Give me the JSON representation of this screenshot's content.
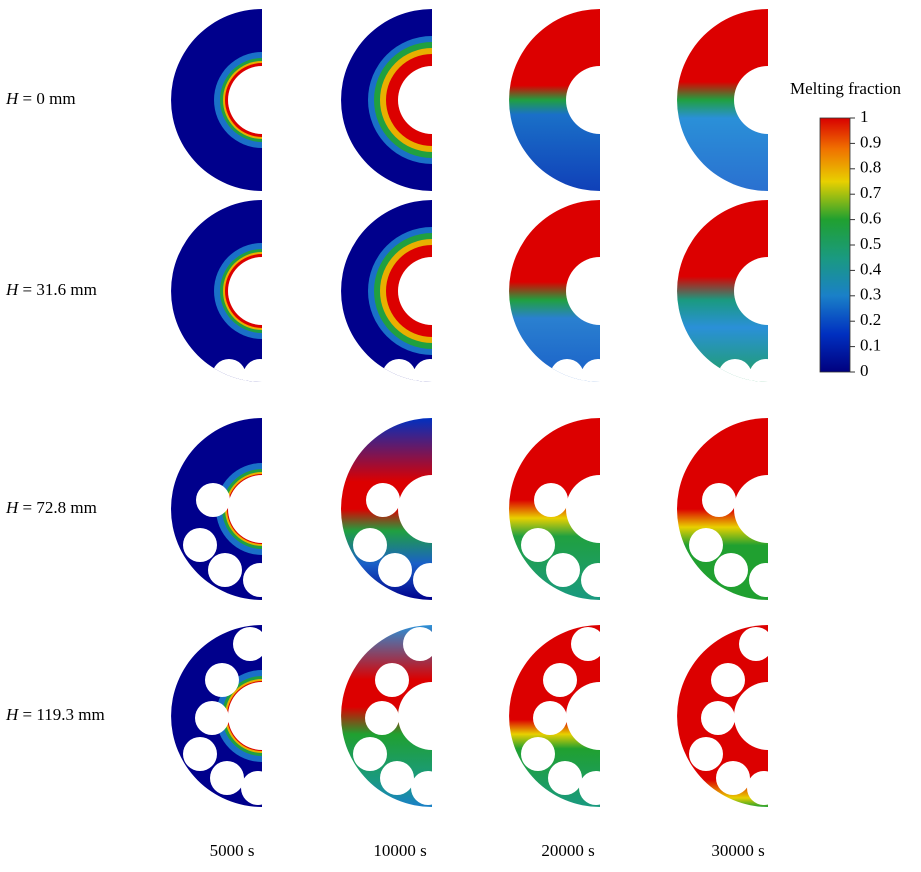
{
  "row_labels": [
    {
      "variable": "H",
      "rest": " = 0 mm"
    },
    {
      "variable": "H",
      "rest": " = 31.6 mm"
    },
    {
      "variable": "H",
      "rest": " = 72.8 mm"
    },
    {
      "variable": "H",
      "rest": " = 119.3 mm"
    }
  ],
  "column_labels": [
    "5000 s",
    "10000 s",
    "20000 s",
    "30000 s"
  ],
  "colorbar": {
    "title": "Melting fraction",
    "ticks": [
      0,
      0.1,
      0.2,
      0.3,
      0.4,
      0.5,
      0.6,
      0.7,
      0.8,
      0.9,
      1
    ]
  }
}
